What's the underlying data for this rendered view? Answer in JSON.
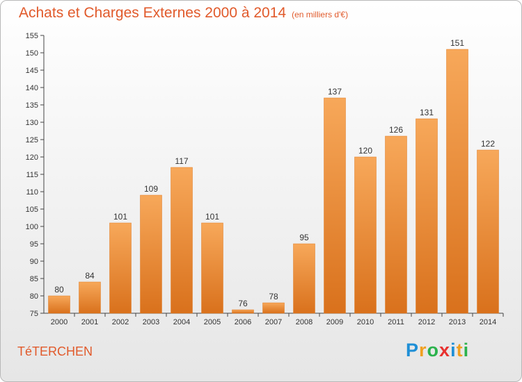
{
  "title": "Achats et Charges Externes 2000 à 2014",
  "subtitle": "(en milliers d'€)",
  "commune": "TéTERCHEN",
  "logo": {
    "letters": [
      "P",
      "r",
      "o",
      "x",
      "i",
      "t",
      "i"
    ],
    "colors": [
      "#1f8fd6",
      "#f0a020",
      "#2bb24c",
      "#e8312f",
      "#1f8fd6",
      "#f0a020",
      "#2bb24c"
    ]
  },
  "colors": {
    "bar": "#f08a2a",
    "bar_light": "#f5a454",
    "title": "#e15a2b"
  },
  "chart_data": {
    "type": "bar",
    "categories": [
      "2000",
      "2001",
      "2002",
      "2003",
      "2004",
      "2005",
      "2006",
      "2007",
      "2008",
      "2009",
      "2010",
      "2011",
      "2012",
      "2013",
      "2014"
    ],
    "values": [
      80,
      84,
      101,
      109,
      117,
      101,
      76,
      78,
      95,
      137,
      120,
      126,
      131,
      151,
      122
    ],
    "ylim": [
      75,
      155
    ],
    "yticks": [
      75,
      80,
      85,
      90,
      95,
      100,
      105,
      110,
      115,
      120,
      125,
      130,
      135,
      140,
      145,
      150,
      155
    ],
    "grid": false
  }
}
